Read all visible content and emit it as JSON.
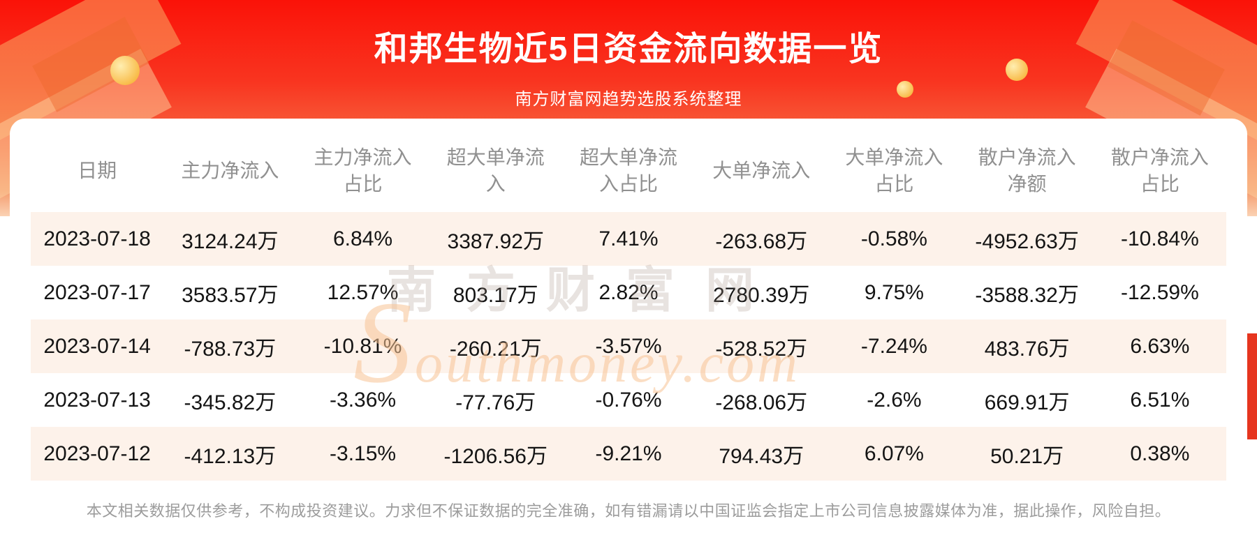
{
  "banner": {
    "title": "和邦生物近5日资金流向数据一览",
    "subtitle": "南方财富网趋势选股系统整理"
  },
  "chart_data": {
    "type": "table",
    "title": "和邦生物近5日资金流向数据一览",
    "columns": [
      "日期",
      "主力净流入",
      "主力净流入占比",
      "超大单净流入",
      "超大单净流入占比",
      "大单净流入",
      "大单净流入占比",
      "散户净流入净额",
      "散户净流入占比"
    ],
    "rows": [
      [
        "2023-07-18",
        "3124.24万",
        "6.84%",
        "3387.92万",
        "7.41%",
        "-263.68万",
        "-0.58%",
        "-4952.63万",
        "-10.84%"
      ],
      [
        "2023-07-17",
        "3583.57万",
        "12.57%",
        "803.17万",
        "2.82%",
        "2780.39万",
        "9.75%",
        "-3588.32万",
        "-12.59%"
      ],
      [
        "2023-07-14",
        "-788.73万",
        "-10.81%",
        "-260.21万",
        "-3.57%",
        "-528.52万",
        "-7.24%",
        "483.76万",
        "6.63%"
      ],
      [
        "2023-07-13",
        "-345.82万",
        "-3.36%",
        "-77.76万",
        "-0.76%",
        "-268.06万",
        "-2.6%",
        "669.91万",
        "6.51%"
      ],
      [
        "2023-07-12",
        "-412.13万",
        "-3.15%",
        "-1206.56万",
        "-9.21%",
        "794.43万",
        "6.07%",
        "50.21万",
        "0.38%"
      ]
    ]
  },
  "table": {
    "headers_display": [
      "日期",
      "主力净流入",
      "主力净流入\n占比",
      "超大单净流\n入",
      "超大单净流\n入占比",
      "大单净流入",
      "大单净流入\n占比",
      "散户净流入\n净额",
      "散户净流入\n占比"
    ]
  },
  "watermark": {
    "cn": "南方财富网",
    "en": "Southmoney.com"
  },
  "footer": {
    "disclaimer": "本文相关数据仅供参考，不构成投资建议。力求但不保证数据的完全准确，如有错漏请以中国证监会指定上市公司信息披露媒体为准，据此操作，风险自担。"
  },
  "colors": {
    "banner_red": "#f91408",
    "ribbon_red": "#e6351f",
    "row_stripe": "#fdf2ea",
    "header_gray": "#909090",
    "watermark_orange": "#f7c394"
  }
}
